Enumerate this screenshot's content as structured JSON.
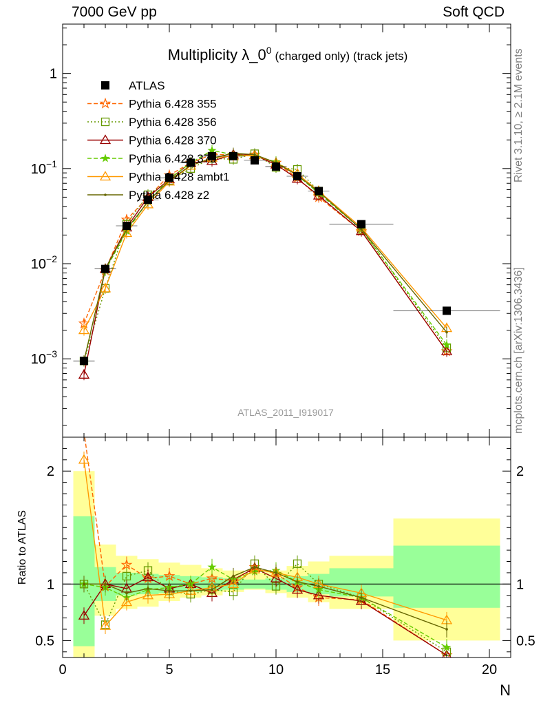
{
  "header": {
    "left": "7000 GeV pp",
    "right": "Soft QCD"
  },
  "title": {
    "main": "Multiplicity λ_0",
    "sup": "0",
    "sub": "(charged only) (track jets)"
  },
  "analysis_label": "ATLAS_2011_I919017",
  "side_labels": {
    "rivet": "Rivet 3.1.10, ≥ 2.1M events",
    "mcplots": "mcplots.cern.ch [arXiv:1306.3436]"
  },
  "xlabel": "N",
  "ylabel_ratio": "Ratio to ATLAS",
  "colors": {
    "atlas": "#000000",
    "p355": "#ff6600",
    "p356": "#669900",
    "p370": "#990000",
    "p379": "#66cc00",
    "ambt1": "#ff9900",
    "z2": "#666600",
    "band_stat": "#99ff99",
    "band_total": "#ffff99"
  },
  "chart_data": [
    {
      "type": "line",
      "yscale": "log",
      "xlim": [
        0,
        21
      ],
      "ylim": [
        0.00015,
        3.3
      ],
      "yticks": [
        {
          "value": 0.001,
          "base": "10",
          "exp": "−3"
        },
        {
          "value": 0.01,
          "base": "10",
          "exp": "−2"
        },
        {
          "value": 0.1,
          "base": "10",
          "exp": "−1"
        },
        {
          "value": 1,
          "base": "1",
          "exp": ""
        }
      ],
      "x": [
        1,
        2,
        3,
        4,
        5,
        6,
        7,
        8,
        9,
        10,
        11,
        12,
        14,
        18
      ],
      "atlas": {
        "name": "ATLAS",
        "values": [
          0.00095,
          0.0088,
          0.025,
          0.047,
          0.08,
          0.115,
          0.135,
          0.135,
          0.122,
          0.105,
          0.083,
          0.058,
          0.026,
          0.0032
        ],
        "xerr": [
          0.5,
          0.5,
          0.5,
          0.5,
          0.5,
          0.5,
          0.5,
          0.5,
          0.5,
          0.5,
          0.5,
          0.5,
          1.5,
          2.5
        ]
      },
      "series": [
        {
          "name": "Pythia 6.428 355",
          "values": [
            0.00235,
            0.0085,
            0.029,
            0.05,
            0.085,
            0.115,
            0.14,
            0.14,
            0.14,
            0.115,
            0.08,
            0.05,
            0.022,
            0.0012
          ]
        },
        {
          "name": "Pythia 6.428 356",
          "values": [
            0.00095,
            0.0055,
            0.026,
            0.053,
            0.075,
            0.1,
            0.128,
            0.125,
            0.143,
            0.103,
            0.098,
            0.058,
            0.023,
            0.0013
          ]
        },
        {
          "name": "Pythia 6.428 370",
          "values": [
            0.00068,
            0.0088,
            0.024,
            0.05,
            0.077,
            0.115,
            0.12,
            0.14,
            0.138,
            0.11,
            0.078,
            0.052,
            0.022,
            0.0012
          ]
        },
        {
          "name": "Pythia 6.428 379",
          "values": [
            0.00095,
            0.0085,
            0.022,
            0.045,
            0.078,
            0.115,
            0.155,
            0.14,
            0.135,
            0.118,
            0.085,
            0.055,
            0.023,
            0.0014
          ]
        },
        {
          "name": "Pythia 6.428 ambt1",
          "values": [
            0.002,
            0.0055,
            0.021,
            0.042,
            0.073,
            0.107,
            0.13,
            0.135,
            0.138,
            0.115,
            0.088,
            0.058,
            0.024,
            0.0021
          ]
        },
        {
          "name": "Pythia 6.428 z2",
          "values": [
            0.00095,
            0.0088,
            0.023,
            0.045,
            0.075,
            0.108,
            0.128,
            0.145,
            0.14,
            0.115,
            0.085,
            0.057,
            0.023,
            0.0019
          ]
        }
      ]
    },
    {
      "type": "line",
      "xlim": [
        0,
        21
      ],
      "ylim": [
        0.35,
        2.3
      ],
      "yticks": [
        0.5,
        1,
        2
      ],
      "xticks": [
        0,
        5,
        10,
        15,
        20
      ],
      "x": [
        1,
        2,
        3,
        4,
        5,
        6,
        7,
        8,
        9,
        10,
        11,
        12,
        14,
        18
      ],
      "bands": {
        "x_low": [
          0.5,
          1.5,
          2.5,
          3.5,
          4.5,
          5.5,
          6.5,
          7.5,
          8.5,
          9.5,
          10.5,
          11.5,
          12.5,
          15.5
        ],
        "x_high": [
          1.5,
          2.5,
          3.5,
          4.5,
          5.5,
          6.5,
          7.5,
          8.5,
          9.5,
          10.5,
          11.5,
          12.5,
          15.5,
          20.5
        ],
        "stat_low": [
          0.45,
          0.85,
          0.9,
          0.91,
          0.92,
          0.93,
          0.94,
          0.95,
          0.96,
          0.95,
          0.93,
          0.91,
          0.89,
          0.79
        ],
        "stat_high": [
          1.6,
          1.15,
          1.1,
          1.09,
          1.08,
          1.07,
          1.06,
          1.05,
          1.04,
          1.05,
          1.07,
          1.09,
          1.14,
          1.34
        ],
        "total_low": [
          0.35,
          0.72,
          0.78,
          0.8,
          0.85,
          0.88,
          0.9,
          0.93,
          0.95,
          0.92,
          0.88,
          0.84,
          0.78,
          0.5
        ],
        "total_high": [
          2.0,
          1.35,
          1.25,
          1.22,
          1.19,
          1.17,
          1.14,
          1.12,
          1.1,
          1.12,
          1.16,
          1.2,
          1.25,
          1.58
        ]
      },
      "series": [
        {
          "name": "Pythia 6.428 355",
          "values": [
            2.35,
            0.98,
            1.17,
            1.05,
            1.07,
            1.0,
            1.05,
            1.03,
            1.15,
            1.09,
            0.97,
            0.88,
            0.86,
            0.37
          ]
        },
        {
          "name": "Pythia 6.428 356",
          "values": [
            1.0,
            0.64,
            1.07,
            1.12,
            0.94,
            0.91,
            0.95,
            0.93,
            1.18,
            0.98,
            1.18,
            1.0,
            0.88,
            0.4
          ]
        },
        {
          "name": "Pythia 6.428 370",
          "values": [
            0.72,
            1.0,
            0.96,
            1.06,
            0.96,
            1.0,
            0.92,
            1.04,
            1.14,
            1.05,
            0.95,
            0.9,
            0.85,
            0.37
          ]
        },
        {
          "name": "Pythia 6.428 379",
          "values": [
            1.0,
            0.97,
            0.88,
            0.95,
            0.97,
            1.0,
            1.15,
            1.04,
            1.11,
            1.12,
            1.02,
            0.95,
            0.88,
            0.44
          ]
        },
        {
          "name": "Pythia 6.428 ambt1",
          "values": [
            2.1,
            0.63,
            0.84,
            0.9,
            0.91,
            0.94,
            0.97,
            1.0,
            1.13,
            1.1,
            1.06,
            1.0,
            0.92,
            0.68
          ]
        },
        {
          "name": "Pythia 6.428 z2",
          "values": [
            1.0,
            1.0,
            0.92,
            0.96,
            0.94,
            0.94,
            0.95,
            1.07,
            1.15,
            1.1,
            1.02,
            0.98,
            0.88,
            0.6
          ]
        }
      ]
    }
  ]
}
